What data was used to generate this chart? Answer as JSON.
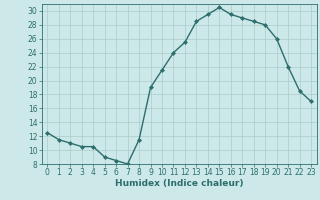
{
  "x": [
    0,
    1,
    2,
    3,
    4,
    5,
    6,
    7,
    8,
    9,
    10,
    11,
    12,
    13,
    14,
    15,
    16,
    17,
    18,
    19,
    20,
    21,
    22,
    23
  ],
  "y": [
    12.5,
    11.5,
    11.0,
    10.5,
    10.5,
    9.0,
    8.5,
    8.0,
    11.5,
    19.0,
    21.5,
    24.0,
    25.5,
    28.5,
    29.5,
    30.5,
    29.5,
    29.0,
    28.5,
    28.0,
    26.0,
    22.0,
    18.5,
    17.0
  ],
  "xlabel": "Humidex (Indice chaleur)",
  "xlim": [
    -0.5,
    23.5
  ],
  "ylim": [
    8,
    31
  ],
  "yticks": [
    8,
    10,
    12,
    14,
    16,
    18,
    20,
    22,
    24,
    26,
    28,
    30
  ],
  "xticks": [
    0,
    1,
    2,
    3,
    4,
    5,
    6,
    7,
    8,
    9,
    10,
    11,
    12,
    13,
    14,
    15,
    16,
    17,
    18,
    19,
    20,
    21,
    22,
    23
  ],
  "line_color": "#2d6e6e",
  "marker": "D",
  "marker_size": 2.0,
  "bg_color": "#cce8e8",
  "grid_color": "#aacccc",
  "tick_fontsize": 5.5,
  "xlabel_fontsize": 6.5,
  "linewidth": 1.0
}
